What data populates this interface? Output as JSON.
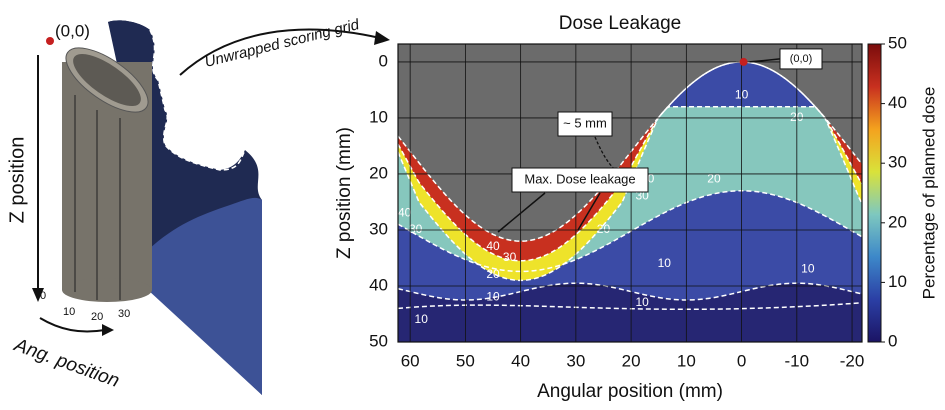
{
  "illustration": {
    "origin_label": "(0,0)",
    "z_label": "Z position",
    "ang_label": "Ang. position",
    "ang_ticks": [
      "0",
      "10",
      "20",
      "30"
    ],
    "arrow_label": "Unwrapped scoring grid"
  },
  "chart_data": {
    "type": "contour",
    "title": "Dose Leakage",
    "x_label": "Angular position (mm)",
    "y_label": "Z position (mm)",
    "xlim": [
      62.2,
      -21.8
    ],
    "xticks": [
      60,
      50,
      40,
      30,
      20,
      10,
      0,
      -10,
      -20
    ],
    "ylim": [
      -3.2,
      50
    ],
    "yticks": [
      0,
      10,
      20,
      30,
      40,
      50
    ],
    "grid": true,
    "levels": [
      10,
      20,
      30,
      40
    ],
    "level_colors": [
      "#262673",
      "#3b4ba6",
      "#86c7bd",
      "#eee32a",
      "#c8301f"
    ],
    "no_data_color": "#6b6b6b",
    "colorbar": {
      "label": "Percentage of planned dose",
      "lim": [
        0,
        50
      ],
      "ticks": [
        0,
        10,
        20,
        30,
        40,
        50
      ]
    },
    "annotations": [
      "(0,0)",
      "~ 5 mm",
      "Max. Dose leakage"
    ]
  }
}
